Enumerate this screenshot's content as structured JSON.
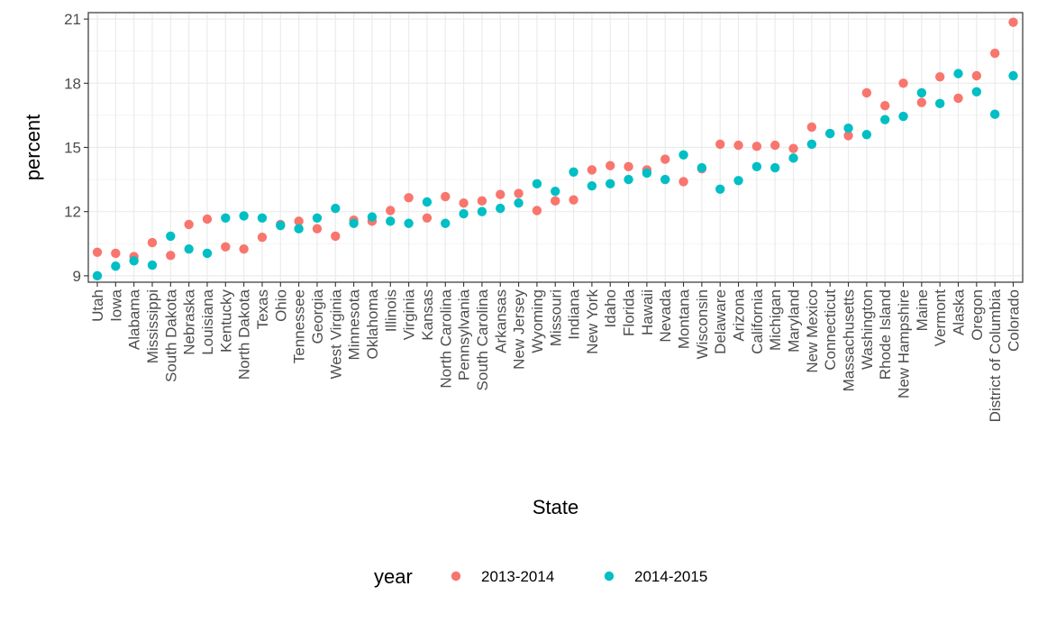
{
  "chart_data": {
    "type": "scatter",
    "xlabel": "State",
    "ylabel": "percent",
    "ylim": [
      8.7,
      21.3
    ],
    "yticks": [
      9,
      12,
      15,
      18,
      21
    ],
    "grid": true,
    "legend_title": "year",
    "legend_position": "bottom",
    "categories": [
      "Utah",
      "Iowa",
      "Alabama",
      "Mississippi",
      "South Dakota",
      "Nebraska",
      "Louisiana",
      "Kentucky",
      "North Dakota",
      "Texas",
      "Ohio",
      "Tennessee",
      "Georgia",
      "West Virginia",
      "Minnesota",
      "Oklahoma",
      "Illinois",
      "Virginia",
      "Kansas",
      "North Carolina",
      "Pennsylvania",
      "South Carolina",
      "Arkansas",
      "New Jersey",
      "Wyoming",
      "Missouri",
      "Indiana",
      "New York",
      "Idaho",
      "Florida",
      "Hawaii",
      "Nevada",
      "Montana",
      "Wisconsin",
      "Delaware",
      "Arizona",
      "California",
      "Michigan",
      "Maryland",
      "New Mexico",
      "Connecticut",
      "Massachusetts",
      "Washington",
      "Rhode Island",
      "New Hampshire",
      "Maine",
      "Vermont",
      "Alaska",
      "Oregon",
      "District of Columbia",
      "Colorado"
    ],
    "series": [
      {
        "name": "2013-2014",
        "color": "#F8766D",
        "values": [
          10.1,
          10.05,
          9.9,
          10.55,
          9.95,
          11.4,
          11.65,
          10.35,
          10.25,
          10.8,
          11.4,
          11.55,
          11.2,
          10.85,
          11.6,
          11.55,
          12.05,
          12.65,
          11.7,
          12.7,
          12.4,
          12.5,
          12.8,
          12.85,
          12.05,
          12.5,
          12.55,
          13.95,
          14.15,
          14.1,
          13.95,
          14.45,
          13.4,
          14.0,
          15.15,
          15.1,
          15.05,
          15.1,
          14.95,
          15.95,
          15.65,
          15.55,
          17.55,
          16.95,
          18.0,
          17.1,
          18.3,
          17.3,
          18.35,
          19.4,
          20.85
        ]
      },
      {
        "name": "2014-2015",
        "color": "#00BFC4",
        "values": [
          9.0,
          9.45,
          9.7,
          9.5,
          10.85,
          10.25,
          10.05,
          11.7,
          11.8,
          11.7,
          11.35,
          11.2,
          11.7,
          12.15,
          11.45,
          11.75,
          11.55,
          11.45,
          12.45,
          11.45,
          11.9,
          12.0,
          12.15,
          12.4,
          13.3,
          12.95,
          13.85,
          13.2,
          13.3,
          13.5,
          13.8,
          13.5,
          14.65,
          14.05,
          13.05,
          13.45,
          14.1,
          14.05,
          14.5,
          15.15,
          15.65,
          15.9,
          15.6,
          16.3,
          16.45,
          17.55,
          17.05,
          18.45,
          17.6,
          16.55,
          18.35
        ]
      }
    ]
  }
}
